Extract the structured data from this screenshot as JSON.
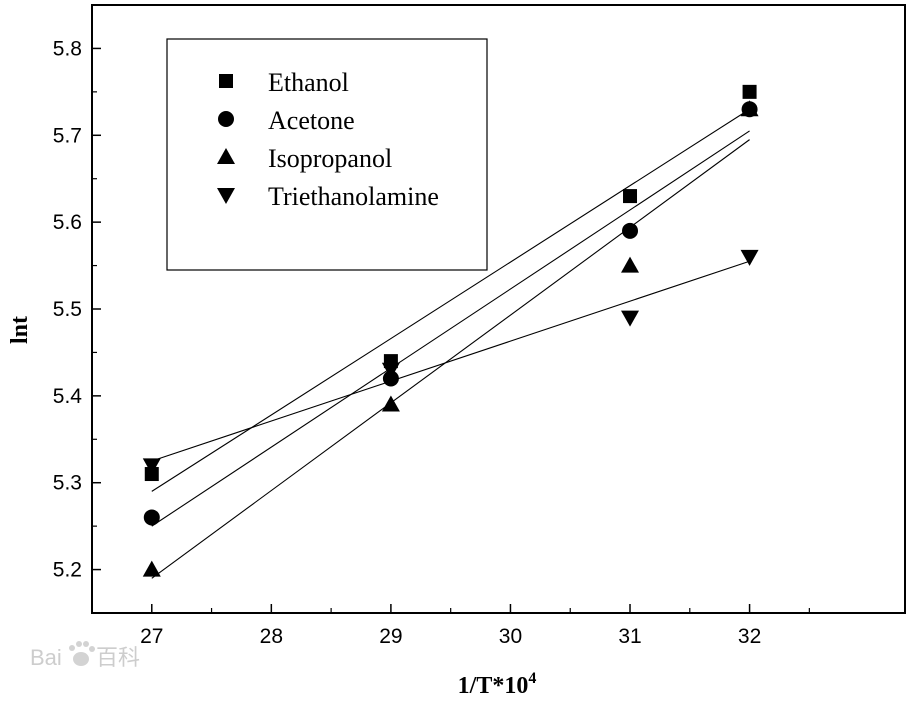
{
  "chart_data": {
    "type": "scatter",
    "title": "",
    "xlabel_main": "1/T*10",
    "xlabel_sup": "4",
    "ylabel": "lnt",
    "xlim": [
      26.5,
      33.3
    ],
    "ylim": [
      5.15,
      5.85
    ],
    "xticks": [
      27,
      28,
      29,
      30,
      31,
      32
    ],
    "yticks": [
      5.2,
      5.3,
      5.4,
      5.5,
      5.6,
      5.7,
      5.8
    ],
    "xtick_labels": [
      "27",
      "28",
      "29",
      "30",
      "31",
      "32"
    ],
    "ytick_labels": [
      "5.2",
      "5.3",
      "5.4",
      "5.5",
      "5.6",
      "5.7",
      "5.8"
    ],
    "grid": false,
    "legend_position": "top-left",
    "series": [
      {
        "name": "Ethanol",
        "marker": "square",
        "points": [
          [
            27,
            5.31
          ],
          [
            29,
            5.44
          ],
          [
            31,
            5.63
          ],
          [
            32,
            5.75
          ]
        ],
        "fit": [
          [
            27,
            5.29
          ],
          [
            32,
            5.73
          ]
        ]
      },
      {
        "name": "Acetone",
        "marker": "circle",
        "points": [
          [
            27,
            5.26
          ],
          [
            29,
            5.42
          ],
          [
            31,
            5.59
          ],
          [
            32,
            5.73
          ]
        ],
        "fit": [
          [
            27,
            5.25
          ],
          [
            32,
            5.705
          ]
        ]
      },
      {
        "name": "Isopropanol",
        "marker": "triangle-up",
        "points": [
          [
            27,
            5.2
          ],
          [
            29,
            5.39
          ],
          [
            31,
            5.55
          ],
          [
            32,
            5.73
          ]
        ],
        "fit": [
          [
            27,
            5.19
          ],
          [
            32,
            5.695
          ]
        ]
      },
      {
        "name": "Triethanolamine",
        "marker": "triangle-down",
        "points": [
          [
            27,
            5.32
          ],
          [
            29,
            5.43
          ],
          [
            31,
            5.49
          ],
          [
            32,
            5.56
          ]
        ],
        "fit": [
          [
            27,
            5.325
          ],
          [
            32,
            5.555
          ]
        ]
      }
    ]
  },
  "watermark": {
    "latin": "Bai",
    "cjk": "百科"
  }
}
